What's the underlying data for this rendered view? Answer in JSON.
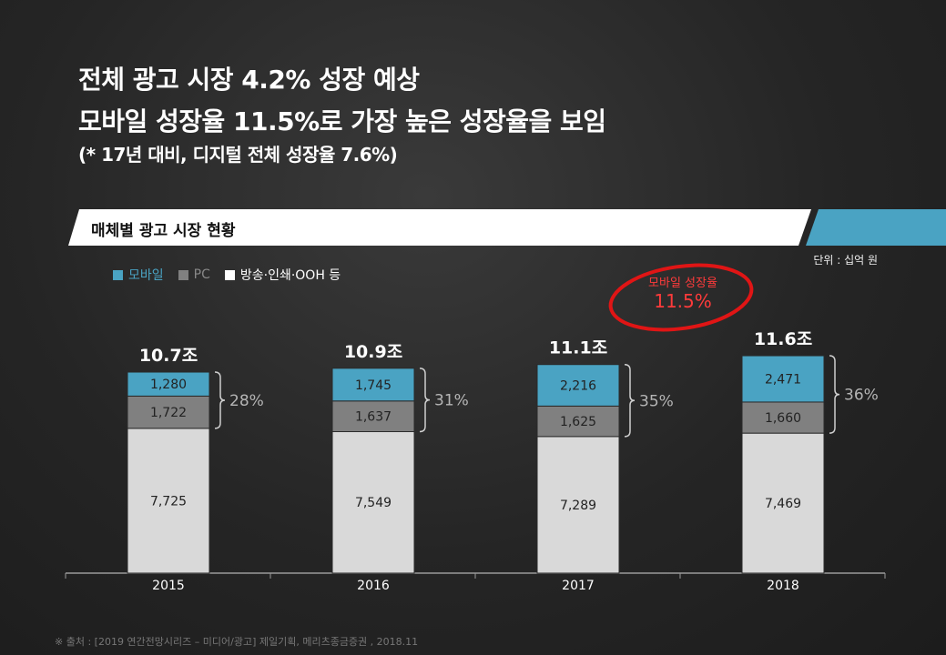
{
  "title_lines": [
    "전체 광고 시장 4.2% 성장 예상",
    "모바일 성장율 11.5%로 가장 높은 성장율을 보임",
    "(* 17년 대비, 디지털 전체 성장율 7.6%)"
  ],
  "section_title": "매체별 광고 시장 현황",
  "unit_label": "단위 : 십억 원",
  "legend": [
    {
      "label": "모바일",
      "color": "#4aa3c3"
    },
    {
      "label": "PC",
      "color": "#808080"
    },
    {
      "label": "방송·인쇄·OOH 등",
      "color": "#ffffff"
    }
  ],
  "callout": {
    "line1": "모바일 성장율",
    "line2": "11.5%"
  },
  "source": "※ 출처 : [2019 연간전망시리즈 – 미디어/광고] 제일기획, 메리츠종금증권 , 2018.11",
  "chart_data": {
    "type": "bar",
    "stacked": true,
    "categories": [
      "2015",
      "2016",
      "2017",
      "2018"
    ],
    "series": [
      {
        "name": "방송·인쇄·OOH 등",
        "color": "#d9d9d9",
        "values": [
          7725,
          7549,
          7289,
          7469
        ]
      },
      {
        "name": "PC",
        "color": "#808080",
        "values": [
          1722,
          1637,
          1625,
          1660
        ]
      },
      {
        "name": "모바일",
        "color": "#4aa3c3",
        "values": [
          1280,
          1745,
          2216,
          2471
        ]
      }
    ],
    "value_labels": {
      "방송·인쇄·OOH 등": [
        "7,725",
        "7,549",
        "7,289",
        "7,469"
      ],
      "PC": [
        "1,722",
        "1,637",
        "1,625",
        "1,660"
      ],
      "모바일": [
        "1,280",
        "1,745",
        "2,216",
        "2,471"
      ]
    },
    "totals": [
      "10.7조",
      "10.9조",
      "11.1조",
      "11.6조"
    ],
    "digital_share": [
      "28%",
      "31%",
      "35%",
      "36%"
    ]
  }
}
